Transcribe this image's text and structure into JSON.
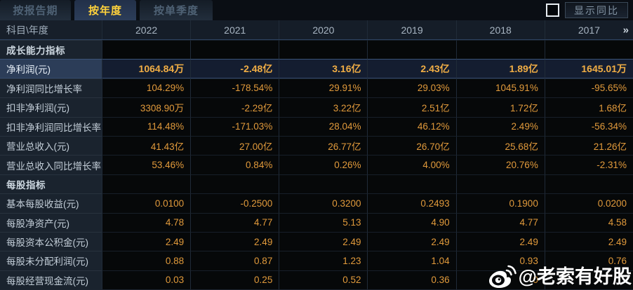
{
  "tabs": [
    {
      "label": "按报告期",
      "active": false
    },
    {
      "label": "按年度",
      "active": true
    },
    {
      "label": "按单季度",
      "active": false
    }
  ],
  "controls": {
    "show_yoy_label": "显示同比",
    "checkbox_checked": false
  },
  "table": {
    "corner_label": "科目\\年度",
    "years": [
      "2022",
      "2021",
      "2020",
      "2019",
      "2018",
      "2017"
    ],
    "more_icon": "»",
    "rows": [
      {
        "type": "section",
        "label": "成长能力指标",
        "values": [
          "",
          "",
          "",
          "",
          "",
          ""
        ]
      },
      {
        "type": "data",
        "highlight": true,
        "label": "净利润(元)",
        "values": [
          "1064.84万",
          "-2.48亿",
          "3.16亿",
          "2.43亿",
          "1.89亿",
          "1645.01万"
        ]
      },
      {
        "type": "data",
        "label": "净利润同比增长率",
        "values": [
          "104.29%",
          "-178.54%",
          "29.91%",
          "29.03%",
          "1045.91%",
          "-95.65%"
        ]
      },
      {
        "type": "data",
        "label": "扣非净利润(元)",
        "values": [
          "3308.90万",
          "-2.29亿",
          "3.22亿",
          "2.51亿",
          "1.72亿",
          "1.68亿"
        ]
      },
      {
        "type": "data",
        "label": "扣非净利润同比增长率",
        "values": [
          "114.48%",
          "-171.03%",
          "28.04%",
          "46.12%",
          "2.49%",
          "-56.34%"
        ]
      },
      {
        "type": "data",
        "label": "营业总收入(元)",
        "values": [
          "41.43亿",
          "27.00亿",
          "26.77亿",
          "26.70亿",
          "25.68亿",
          "21.26亿"
        ]
      },
      {
        "type": "data",
        "label": "营业总收入同比增长率",
        "values": [
          "53.46%",
          "0.84%",
          "0.26%",
          "4.00%",
          "20.76%",
          "-2.31%"
        ]
      },
      {
        "type": "section",
        "label": "每股指标",
        "values": [
          "",
          "",
          "",
          "",
          "",
          ""
        ]
      },
      {
        "type": "data",
        "label": "基本每股收益(元)",
        "values": [
          "0.0100",
          "-0.2500",
          "0.3200",
          "0.2493",
          "0.1900",
          "0.0200"
        ]
      },
      {
        "type": "data",
        "label": "每股净资产(元)",
        "values": [
          "4.78",
          "4.77",
          "5.13",
          "4.90",
          "4.77",
          "4.58"
        ]
      },
      {
        "type": "data",
        "label": "每股资本公积金(元)",
        "values": [
          "2.49",
          "2.49",
          "2.49",
          "2.49",
          "2.49",
          "2.49"
        ]
      },
      {
        "type": "data",
        "label": "每股未分配利润(元)",
        "values": [
          "0.88",
          "0.87",
          "1.23",
          "1.04",
          "0.93",
          "0.76"
        ]
      },
      {
        "type": "data",
        "label": "每股经营现金流(元)",
        "values": [
          "0.03",
          "0.25",
          "0.52",
          "0.36",
          "0",
          ""
        ]
      }
    ]
  },
  "watermark": {
    "icon": "weibo-icon",
    "text": "@老索有好股"
  },
  "colors": {
    "value_orange": "#e19a3b",
    "highlight_value": "#f1ae45",
    "active_tab_text": "#ffd23c",
    "label_text": "#c3ced8",
    "page_bg": "#0a0e14",
    "label_col_bg": "#1a232e",
    "highlight_row_bg": "#141d30"
  }
}
